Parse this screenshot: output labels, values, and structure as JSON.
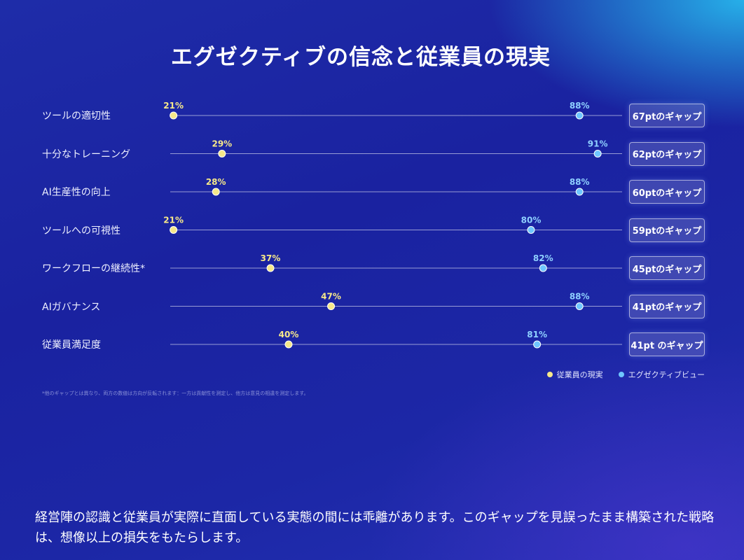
{
  "title": "エグゼクティブの信念と従業員の現実",
  "chart_data": {
    "type": "dumbbell",
    "categories": [
      "ツールの適切性",
      "十分なトレーニング",
      "AI生産性の向上",
      "ツールへの可視性",
      "ワークフローの継続性*",
      "AIガバナンス",
      "従業員満足度"
    ],
    "series": [
      {
        "name": "従業員の現実",
        "values": [
          21,
          29,
          28,
          21,
          37,
          47,
          40
        ],
        "labels": [
          "21%",
          "29%",
          "28%",
          "21%",
          "37%",
          "47%",
          "40%"
        ],
        "color": "#f6e88a"
      },
      {
        "name": "エグゼクティブビュー",
        "values": [
          88,
          91,
          88,
          80,
          82,
          88,
          81
        ],
        "labels": [
          "88%",
          "91%",
          "88%",
          "80%",
          "82%",
          "88%",
          "81%"
        ],
        "color": "#6fc6ff"
      }
    ],
    "gaps": [
      "67ptのギャップ",
      "62ptのギャップ",
      "60ptのギャップ",
      "59ptのギャップ",
      "45ptのギャップ",
      "41ptのギャップ",
      "41pt のギャップ"
    ],
    "xlim": [
      0,
      100
    ]
  },
  "legend": {
    "employee": "従業員の現実",
    "executive": "エグゼクティブビュー"
  },
  "footnote": "*他のギャップとは異なり、両方の数値は方向が反転されます：一方は貢献性を測定し、他方は意見の相違を測定します。",
  "caption": "経営陣の認識と従業員が実際に直面している実態の間には乖離があります。このギャップを見誤ったまま構築された戦略は、想像以上の損失をもたらします。"
}
